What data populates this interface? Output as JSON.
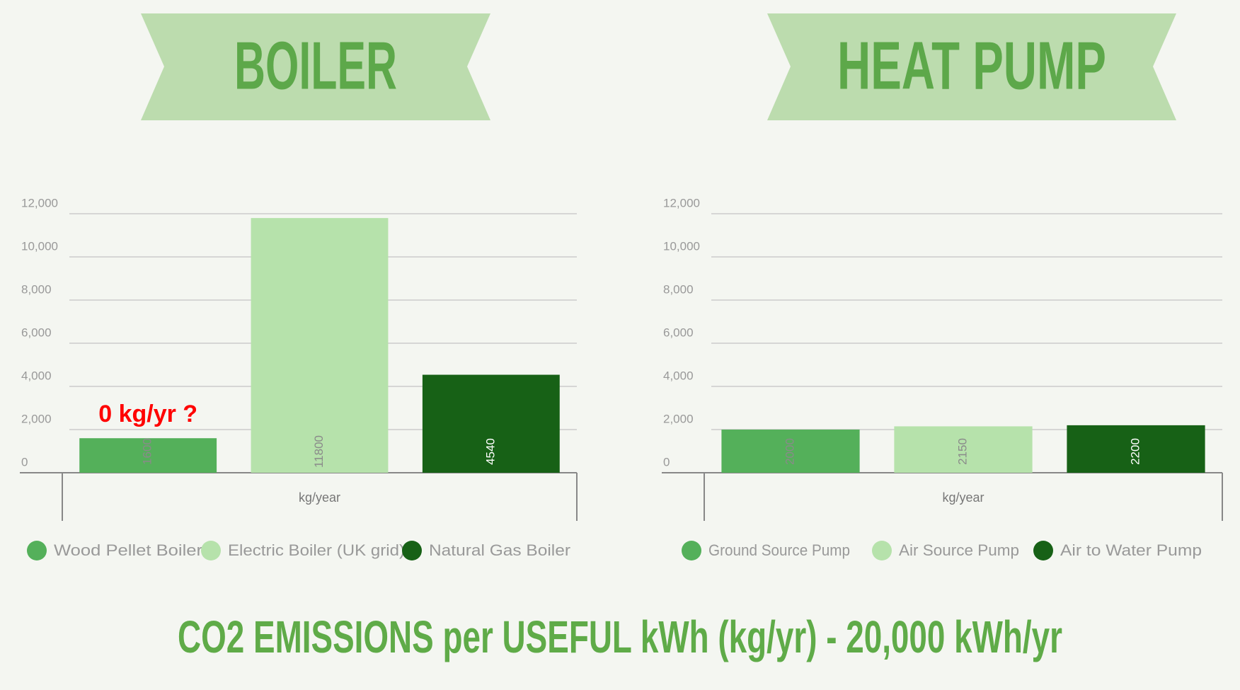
{
  "title": "CO2 EMISSIONS per USEFUL kWh (kg/yr) - 20,000 kWh/yr",
  "chart_data": [
    {
      "type": "bar",
      "title": "BOILER",
      "x_label": "kg/year",
      "categories": [
        "Wood Pellet Boiler",
        "Electric Boiler (UK grid)",
        "Natural Gas Boiler"
      ],
      "values": [
        1600,
        11800,
        4540
      ],
      "colors": [
        "#54b05a",
        "#b6e2ab",
        "#176116"
      ],
      "ylim": [
        0,
        12000
      ],
      "yticks": [
        0,
        {
          "value": 2000,
          "label": "2,000"
        },
        {
          "value": 4000,
          "label": "4,000"
        },
        {
          "value": 6000,
          "label": "6,000"
        },
        {
          "value": 8000,
          "label": "8,000"
        },
        {
          "value": 10000,
          "label": "10,000"
        },
        {
          "value": 12000,
          "label": "12,000"
        }
      ],
      "grid": true,
      "legend": "bottom",
      "annotations": [
        {
          "text": "0 kg/yr ?",
          "color": "#ff0000"
        }
      ]
    },
    {
      "type": "bar",
      "title": "HEAT PUMP",
      "x_label": "kg/year",
      "categories": [
        "Ground Source Pump",
        "Air Source Pump",
        "Air to Water Pump"
      ],
      "values": [
        2000,
        2150,
        2200
      ],
      "colors": [
        "#54b05a",
        "#b6e2ab",
        "#176116"
      ],
      "ylim": [
        0,
        12000
      ],
      "yticks": [
        0,
        {
          "value": 2000,
          "label": "2,000"
        },
        {
          "value": 4000,
          "label": "4,000"
        },
        {
          "value": 6000,
          "label": "6,000"
        },
        {
          "value": 8000,
          "label": "8,000"
        },
        {
          "value": 10000,
          "label": "10,000"
        },
        {
          "value": 12000,
          "label": "12,000"
        }
      ],
      "grid": true,
      "legend": "bottom"
    }
  ]
}
